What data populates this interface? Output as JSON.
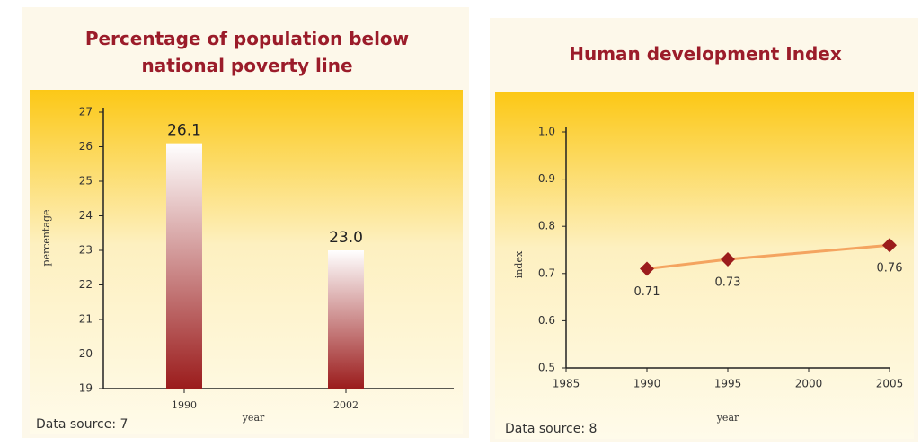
{
  "chart_data": [
    {
      "type": "bar",
      "title": "Percentage of population below national poverty line",
      "categories": [
        "1990",
        "2002"
      ],
      "values": [
        26.1,
        23.0
      ],
      "value_labels": [
        "26.1",
        "23.0"
      ],
      "color": "#9b1c1c",
      "ylim": [
        19,
        27
      ],
      "yticks": [
        19,
        20,
        21,
        22,
        23,
        24,
        25,
        26,
        27
      ],
      "ylabel": "percentage",
      "xlabel": "year",
      "source": "Data source: 7"
    },
    {
      "type": "line",
      "title": "Human development Index",
      "x": [
        1990,
        1995,
        2005
      ],
      "series": [
        {
          "name": "index",
          "color": "#f4a460",
          "marker_color": "#9b1c1c",
          "values": [
            0.71,
            0.73,
            0.76
          ]
        }
      ],
      "xlim": [
        1985,
        2005
      ],
      "xticks": [
        1985,
        1990,
        1995,
        2000,
        2005
      ],
      "ylim": [
        0.5,
        1.0
      ],
      "yticks": [
        0.5,
        0.6,
        0.7,
        0.8,
        0.9,
        {
          "value": 1.0,
          "label": "1.0"
        }
      ],
      "ylabel": "index",
      "xlabel": "year",
      "source": "Data source: 8"
    }
  ]
}
